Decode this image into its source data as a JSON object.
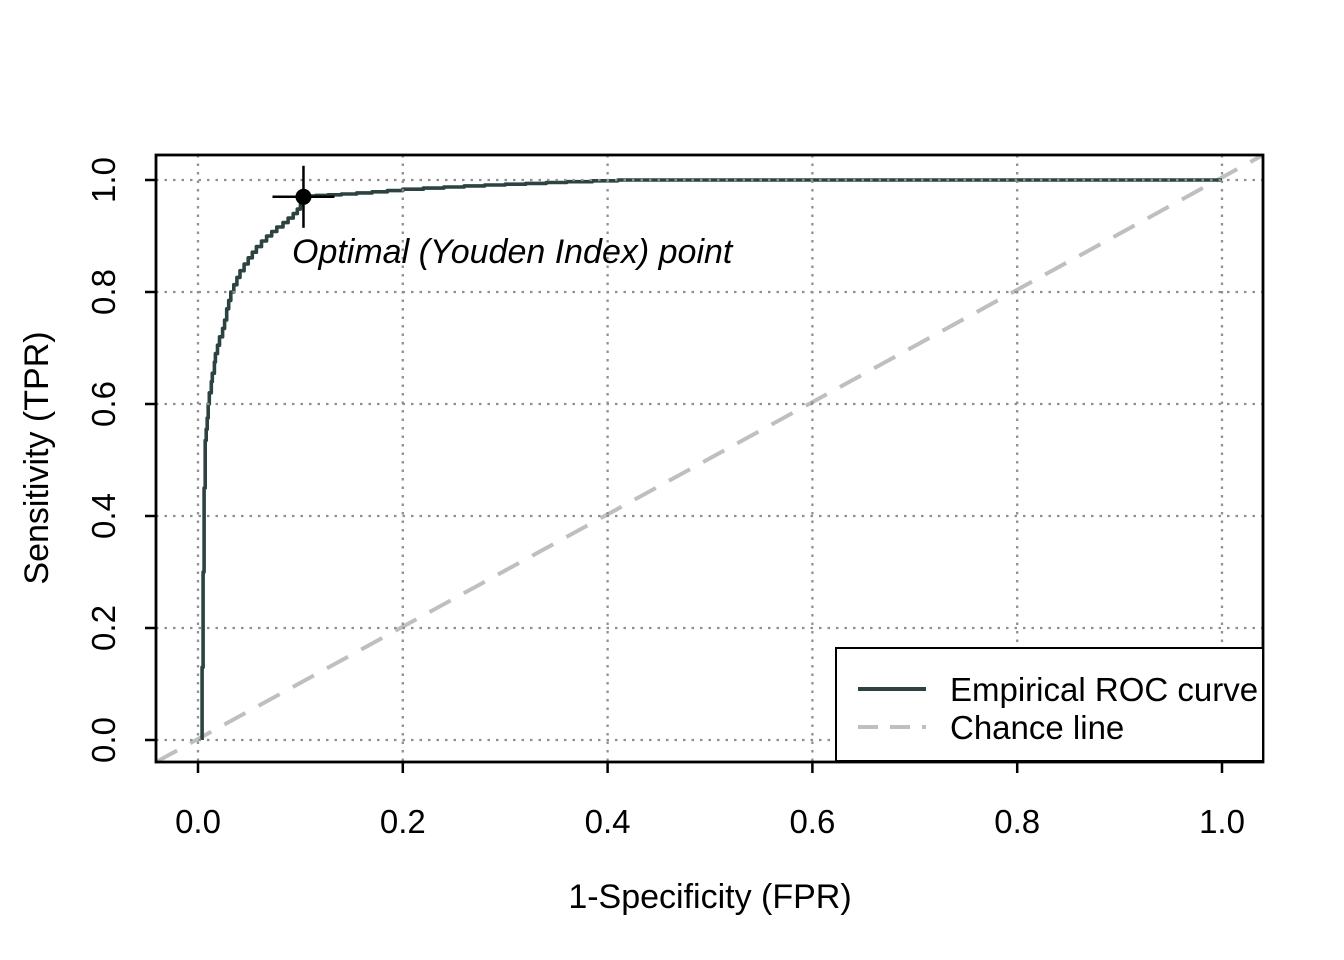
{
  "figure": {
    "background": "#ffffff"
  },
  "theme": {
    "grid_color": "#909090",
    "axis_color": "#000000",
    "roc_color": "#2C4341",
    "chance_color": "#BFBFBF",
    "marker_color": "#000000",
    "legend_bg": "#ffffff",
    "legend_border": "#000000"
  },
  "chart_data": {
    "type": "line",
    "title": "",
    "xlabel": "1-Specificity (FPR)",
    "ylabel": "Sensitivity (TPR)",
    "xlim": [
      0,
      1
    ],
    "ylim": [
      0,
      1
    ],
    "grid": "dotted",
    "x_ticks": [
      0,
      0.2,
      0.4,
      0.6,
      0.8,
      1
    ],
    "y_ticks": [
      0,
      0.2,
      0.4,
      0.6,
      0.8,
      1
    ],
    "x_tick_labels": [
      "0.0",
      "0.2",
      "0.4",
      "0.6",
      "0.8",
      "1.0"
    ],
    "y_tick_labels": [
      "0.0",
      "0.2",
      "0.4",
      "0.6",
      "0.8",
      "1.0"
    ],
    "series": [
      {
        "name": "Empirical ROC curve",
        "type": "step",
        "line": "solid",
        "color": "#2C4341",
        "points": [
          [
            0.004,
            0.0
          ],
          [
            0.004,
            0.1
          ],
          [
            0.005,
            0.13
          ],
          [
            0.005,
            0.28
          ],
          [
            0.006,
            0.3
          ],
          [
            0.006,
            0.42
          ],
          [
            0.007,
            0.45
          ],
          [
            0.007,
            0.52
          ],
          [
            0.008,
            0.535
          ],
          [
            0.009,
            0.555
          ],
          [
            0.01,
            0.575
          ],
          [
            0.011,
            0.6
          ],
          [
            0.013,
            0.62
          ],
          [
            0.014,
            0.64
          ],
          [
            0.016,
            0.655
          ],
          [
            0.017,
            0.675
          ],
          [
            0.019,
            0.69
          ],
          [
            0.021,
            0.705
          ],
          [
            0.024,
            0.72
          ],
          [
            0.026,
            0.735
          ],
          [
            0.028,
            0.75
          ],
          [
            0.03,
            0.77
          ],
          [
            0.032,
            0.785
          ],
          [
            0.035,
            0.8
          ],
          [
            0.038,
            0.813
          ],
          [
            0.041,
            0.826
          ],
          [
            0.045,
            0.838
          ],
          [
            0.049,
            0.85
          ],
          [
            0.053,
            0.861
          ],
          [
            0.057,
            0.871
          ],
          [
            0.062,
            0.881
          ],
          [
            0.067,
            0.891
          ],
          [
            0.072,
            0.9
          ],
          [
            0.077,
            0.908
          ],
          [
            0.083,
            0.916
          ],
          [
            0.088,
            0.924
          ],
          [
            0.093,
            0.932
          ],
          [
            0.097,
            0.94
          ],
          [
            0.1,
            0.948
          ],
          [
            0.102,
            0.956
          ],
          [
            0.104,
            0.964
          ],
          [
            0.105,
            0.97
          ],
          [
            0.115,
            0.9715
          ],
          [
            0.127,
            0.9725
          ],
          [
            0.14,
            0.9735
          ],
          [
            0.155,
            0.975
          ],
          [
            0.17,
            0.977
          ],
          [
            0.185,
            0.979
          ],
          [
            0.2,
            0.981
          ],
          [
            0.22,
            0.9835
          ],
          [
            0.24,
            0.9855
          ],
          [
            0.26,
            0.9875
          ],
          [
            0.28,
            0.9895
          ],
          [
            0.3,
            0.991
          ],
          [
            0.32,
            0.9925
          ],
          [
            0.34,
            0.994
          ],
          [
            0.36,
            0.9955
          ],
          [
            0.385,
            0.997
          ],
          [
            0.41,
            0.9985
          ],
          [
            0.45,
            1.0
          ],
          [
            1.0,
            1.0
          ]
        ]
      },
      {
        "name": "Chance line",
        "type": "line",
        "line": "dashed",
        "color": "#BFBFBF",
        "points": [
          [
            0,
            0
          ],
          [
            1,
            1
          ]
        ]
      }
    ],
    "optimal_point": {
      "fpr": 0.103,
      "tpr": 0.97,
      "label": "Optimal (Youden Index) point"
    },
    "legend": {
      "position": "bottomright",
      "entries": [
        {
          "label": "Empirical ROC curve",
          "line": "solid",
          "color": "#2C4341"
        },
        {
          "label": "Chance line",
          "line": "dashed",
          "color": "#BFBFBF"
        }
      ]
    }
  }
}
